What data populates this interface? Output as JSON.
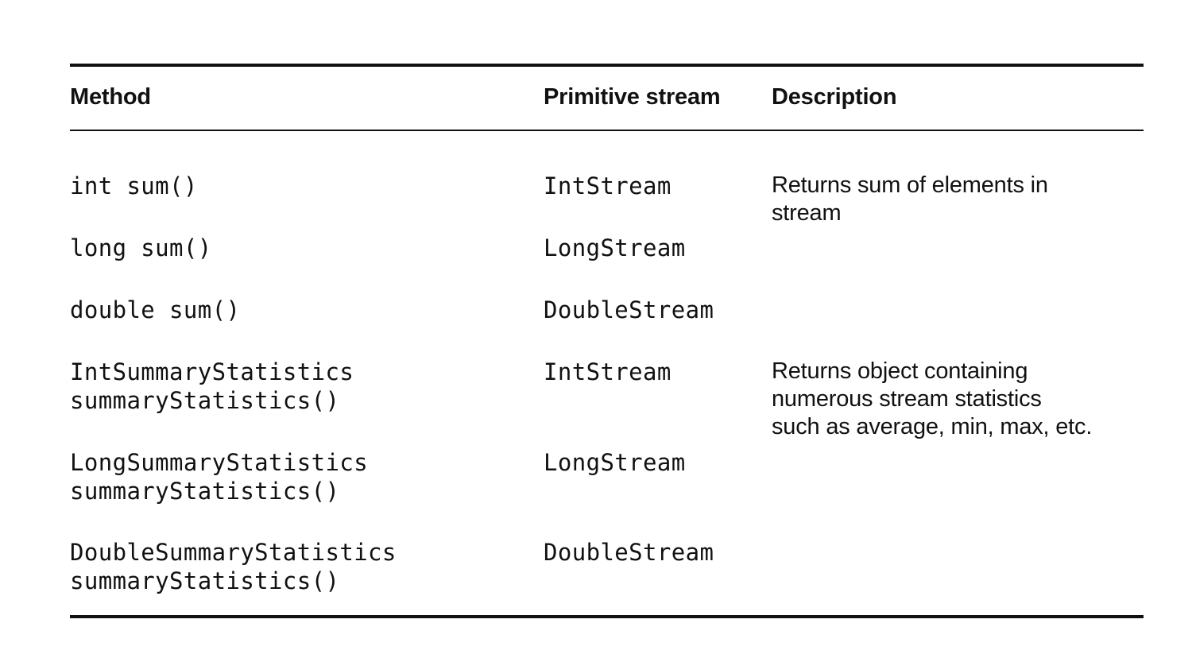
{
  "table": {
    "headers": {
      "method": "Method",
      "stream": "Primitive stream",
      "description": "Description"
    },
    "rows": [
      {
        "method": [
          "int sum()"
        ],
        "stream": "IntStream"
      },
      {
        "method": [
          "long sum()"
        ],
        "stream": "LongStream"
      },
      {
        "method": [
          "double sum()"
        ],
        "stream": "DoubleStream"
      },
      {
        "method": [
          "IntSummaryStatistics",
          "summaryStatistics()"
        ],
        "stream": "IntStream"
      },
      {
        "method": [
          "LongSummaryStatistics",
          "summaryStatistics()"
        ],
        "stream": "LongStream"
      },
      {
        "method": [
          "DoubleSummaryStatistics",
          "summaryStatistics()"
        ],
        "stream": "DoubleStream"
      }
    ],
    "descriptions": [
      {
        "lines": [
          "Returns sum of elements in",
          "stream"
        ]
      },
      {
        "lines": [
          "Returns object containing",
          "numerous stream statistics",
          "such as average, min, max, etc."
        ]
      }
    ]
  }
}
